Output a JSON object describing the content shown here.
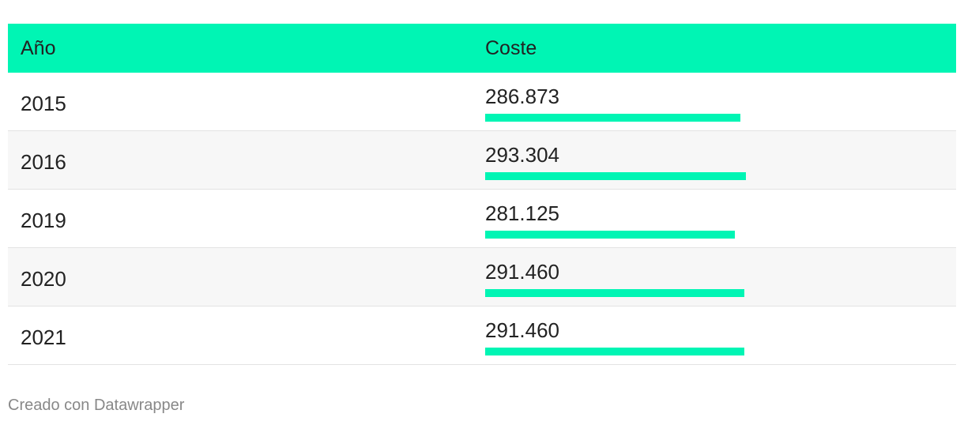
{
  "table": {
    "header": [
      "Año",
      "Coste"
    ],
    "rows": [
      [
        "2015",
        {
          "value": 286873,
          "label": "286.873"
        }
      ],
      [
        "2016",
        {
          "value": 293304,
          "label": "293.304"
        }
      ],
      [
        "2019",
        {
          "value": 281125,
          "label": "281.125"
        }
      ],
      [
        "2020",
        {
          "value": 291460,
          "label": "291.460"
        }
      ],
      [
        "2021",
        {
          "value": 291460,
          "label": "291.460"
        }
      ]
    ],
    "bar_color": "#00f5b4"
  },
  "footer": "Creado con Datawrapper"
}
